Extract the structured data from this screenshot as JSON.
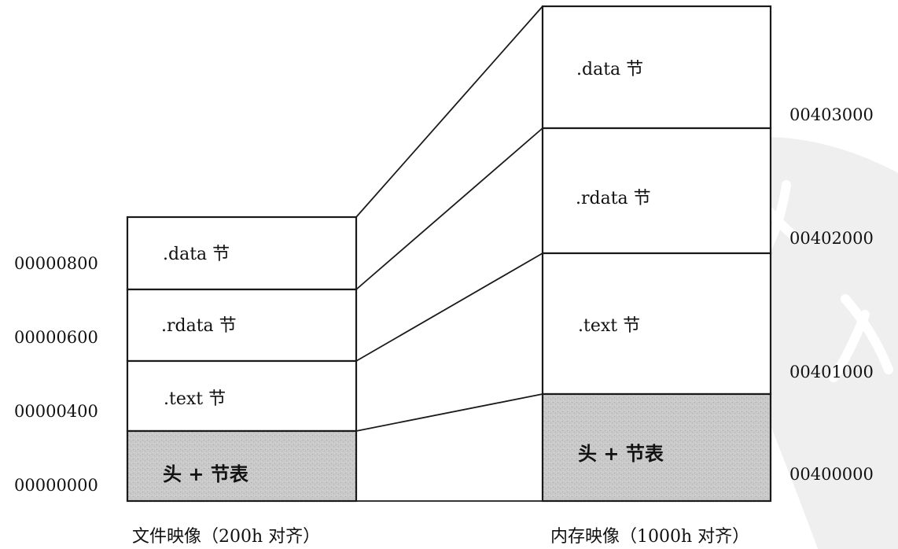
{
  "file_image": {
    "caption": "文件映像（200h 对齐）",
    "sections": [
      {
        "label": ".data 节",
        "kind": "section"
      },
      {
        "label": ".rdata 节",
        "kind": "section"
      },
      {
        "label": ".text 节",
        "kind": "section"
      },
      {
        "label": "头 + 节表",
        "kind": "header"
      }
    ],
    "addresses": [
      "00000800",
      "00000600",
      "00000400",
      "00000000"
    ]
  },
  "memory_image": {
    "caption": "内存映像（1000h 对齐）",
    "sections": [
      {
        "label": ".data 节",
        "kind": "section"
      },
      {
        "label": ".rdata 节",
        "kind": "section"
      },
      {
        "label": ".text 节",
        "kind": "section"
      },
      {
        "label": "头 + 节表",
        "kind": "header"
      }
    ],
    "addresses": [
      "00403000",
      "00402000",
      "00401000",
      "00400000"
    ]
  },
  "colors": {
    "line": "#1a1a1a",
    "header_fill": "#c8c8c8",
    "section_fill": "#ffffff",
    "watermark": "#ececec"
  }
}
